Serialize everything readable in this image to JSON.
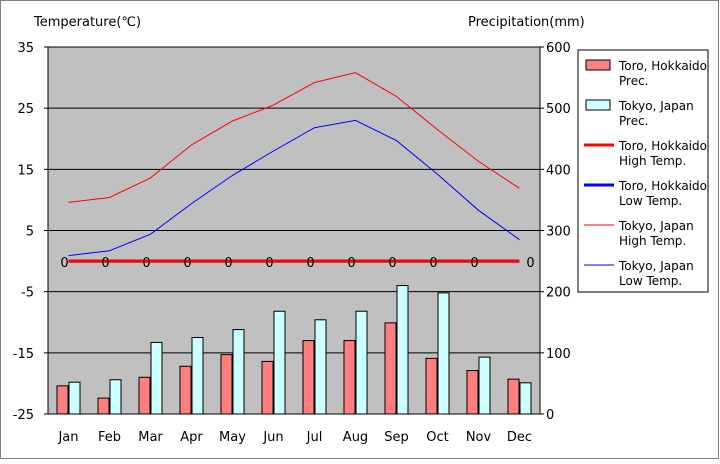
{
  "chart_data": {
    "type": "bar",
    "categories": [
      "Jan",
      "Feb",
      "Mar",
      "Apr",
      "May",
      "Jun",
      "Jul",
      "Aug",
      "Sep",
      "Oct",
      "Nov",
      "Dec"
    ],
    "left_axis": {
      "label": "Temperature(℃)",
      "min": -25,
      "max": 35,
      "ticks": [
        35,
        25,
        15,
        5,
        -5,
        -15,
        -25
      ]
    },
    "right_axis": {
      "label": "Precipitation(mm)",
      "min": 0,
      "max": 600,
      "ticks": [
        600,
        500,
        400,
        300,
        200,
        100,
        0
      ]
    },
    "grid": true,
    "legend_position": "right",
    "series": [
      {
        "name": "Toro, Hokkaido Prec.",
        "kind": "bar",
        "axis": "right",
        "color": "#ff7f7f",
        "values": [
          46,
          26,
          60,
          78,
          97,
          86,
          120,
          120,
          149,
          91,
          71,
          57
        ]
      },
      {
        "name": "Tokyo, Japan Prec.",
        "kind": "bar",
        "axis": "right",
        "color": "#ccffff",
        "values": [
          52,
          56,
          117,
          125,
          138,
          168,
          154,
          168,
          210,
          198,
          93,
          51
        ]
      },
      {
        "name": "Toro, Hokkaido High Temp.",
        "kind": "line",
        "axis": "left",
        "color": "#ff0000",
        "width": 3,
        "values": [
          0,
          0,
          0,
          0,
          0,
          0,
          0,
          0,
          0,
          0,
          0,
          0
        ]
      },
      {
        "name": "Toro, Hokkaido Low Temp.",
        "kind": "line",
        "axis": "left",
        "color": "#0000ff",
        "width": 3,
        "values": [
          0,
          0,
          0,
          0,
          0,
          0,
          0,
          0,
          0,
          0,
          0,
          0
        ]
      },
      {
        "name": "Tokyo, Japan High Temp.",
        "kind": "line",
        "axis": "left",
        "color": "#ff0000",
        "width": 1,
        "values": [
          9.6,
          10.4,
          13.6,
          19.0,
          22.9,
          25.5,
          29.2,
          30.8,
          26.9,
          21.5,
          16.3,
          11.9
        ]
      },
      {
        "name": "Tokyo, Japan Low Temp.",
        "kind": "line",
        "axis": "left",
        "color": "#0000ff",
        "width": 1,
        "values": [
          0.9,
          1.7,
          4.4,
          9.4,
          14.0,
          18.0,
          21.8,
          23.0,
          19.7,
          14.2,
          8.3,
          3.5
        ]
      }
    ],
    "data_labels": {
      "series": "Toro, Hokkaido High Temp.",
      "values": [
        "0",
        "0",
        "0",
        "0",
        "0",
        "0",
        "0",
        "0",
        "0",
        "0",
        "0",
        "0"
      ]
    },
    "legend": [
      {
        "label_lines": [
          "Toro, Hokkaido",
          "Prec."
        ],
        "swatch": "bar",
        "color": "#ff7f7f"
      },
      {
        "label_lines": [
          "Tokyo, Japan",
          "Prec."
        ],
        "swatch": "bar",
        "color": "#ccffff"
      },
      {
        "label_lines": [
          "Toro, Hokkaido",
          "High Temp."
        ],
        "swatch": "line",
        "color": "#ff0000",
        "width": 3
      },
      {
        "label_lines": [
          "Toro, Hokkaido",
          "Low Temp."
        ],
        "swatch": "line",
        "color": "#0000ff",
        "width": 3
      },
      {
        "label_lines": [
          "Tokyo, Japan",
          "High Temp."
        ],
        "swatch": "line",
        "color": "#ff0000",
        "width": 1
      },
      {
        "label_lines": [
          "Tokyo, Japan",
          "Low Temp."
        ],
        "swatch": "line",
        "color": "#0000ff",
        "width": 1
      }
    ],
    "colors": {
      "plot_background": "#c0c0c0",
      "grid": "#000000"
    }
  }
}
